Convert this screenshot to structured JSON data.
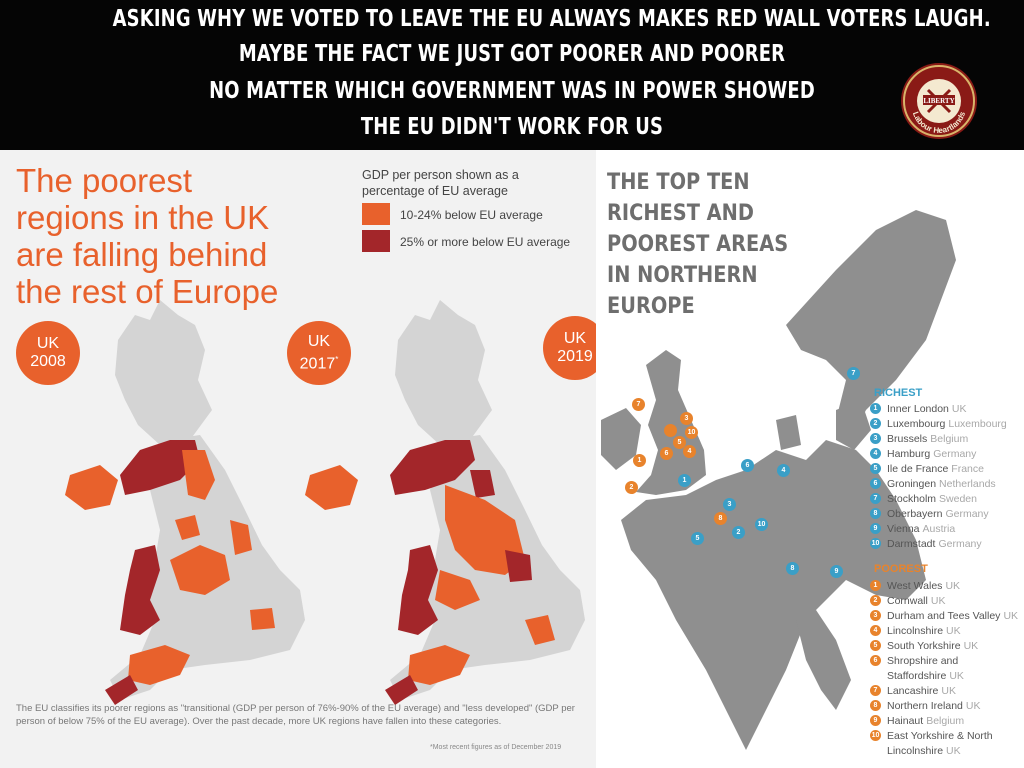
{
  "banner": {
    "lines": [
      "ASKING WHY WE VOTED TO LEAVE THE EU ALWAYS MAKES RED WALL VOTERS LAUGH.",
      "MAYBE THE FACT WE JUST GOT POORER AND POORER",
      "NO MATTER WHICH GOVERNMENT WAS IN POWER SHOWED",
      "THE EU DIDN'T WORK FOR US"
    ],
    "logo_top": "LIBERTY",
    "logo_bottom": "Labour Heartlands"
  },
  "left_panel": {
    "title_lines": [
      "The poorest",
      "regions in the UK",
      "are falling behind",
      "the rest of Europe"
    ],
    "legend_heading_lines": [
      "GDP per person shown as a",
      "percentage of EU average"
    ],
    "legend": [
      {
        "label": "10-24% below EU average",
        "color": "#e8612c"
      },
      {
        "label": "25% or more below EU average",
        "color": "#a3262a"
      }
    ],
    "badges": [
      {
        "line1": "UK",
        "line2": "2008",
        "mark": ""
      },
      {
        "line1": "UK",
        "line2": "2017",
        "mark": "*"
      },
      {
        "line1": "UK",
        "line2": "2019",
        "mark": ""
      }
    ],
    "footnote": "The EU classifies its poorer regions as \"transitional (GDP per person of 76%-90% of the EU average) and \"less developed\" (GDP per person of below 75% of the EU average). Over the past decade, more UK regions have fallen into these categories.",
    "recent_note": "*Most recent figures as of December 2019",
    "colors": {
      "land": "#d4d4d4",
      "orange": "#e8612c",
      "red": "#a3262a"
    }
  },
  "right_panel": {
    "title_lines": [
      "THE TOP TEN",
      "RICHEST AND",
      "POOREST AREAS",
      "IN NORTHERN",
      "EUROPE"
    ],
    "richest_heading": "RICHEST",
    "richest": [
      {
        "n": "1",
        "name": "Inner London",
        "country": "UK"
      },
      {
        "n": "2",
        "name": "Luxembourg",
        "country": "Luxembourg"
      },
      {
        "n": "3",
        "name": "Brussels",
        "country": "Belgium"
      },
      {
        "n": "4",
        "name": "Hamburg",
        "country": "Germany"
      },
      {
        "n": "5",
        "name": "Ile de France",
        "country": "France"
      },
      {
        "n": "6",
        "name": "Groningen",
        "country": "Netherlands"
      },
      {
        "n": "7",
        "name": "Stockholm",
        "country": "Sweden"
      },
      {
        "n": "8",
        "name": "Oberbayern",
        "country": "Germany"
      },
      {
        "n": "9",
        "name": "Vienna",
        "country": "Austria"
      },
      {
        "n": "10",
        "name": "Darmstadt",
        "country": "Germany"
      }
    ],
    "poorest_heading": "POOREST",
    "poorest": [
      {
        "n": "1",
        "name": "West Wales",
        "country": "UK"
      },
      {
        "n": "2",
        "name": "Cornwall",
        "country": "UK"
      },
      {
        "n": "3",
        "name": "Durham and Tees Valley",
        "country": "UK"
      },
      {
        "n": "4",
        "name": "Lincolnshire",
        "country": "UK"
      },
      {
        "n": "5",
        "name": "South Yorkshire",
        "country": "UK"
      },
      {
        "n": "6",
        "name": "Shropshire and",
        "country": ""
      },
      {
        "n": "",
        "name": "Staffordshire",
        "country": "UK"
      },
      {
        "n": "7",
        "name": "Lancashire",
        "country": "UK"
      },
      {
        "n": "8",
        "name": "Northern Ireland",
        "country": "UK"
      },
      {
        "n": "9",
        "name": "Hainaut",
        "country": "Belgium"
      },
      {
        "n": "10",
        "name": "East Yorkshire & North",
        "country": ""
      },
      {
        "n": "",
        "name": "Lincolnshire",
        "country": "UK"
      }
    ],
    "colors": {
      "land": "#8f8f8f",
      "rich": "#3a9fc7",
      "poor": "#e8832c",
      "heading_rich": "#3a9fc7",
      "heading_poor": "#e8832c"
    }
  }
}
